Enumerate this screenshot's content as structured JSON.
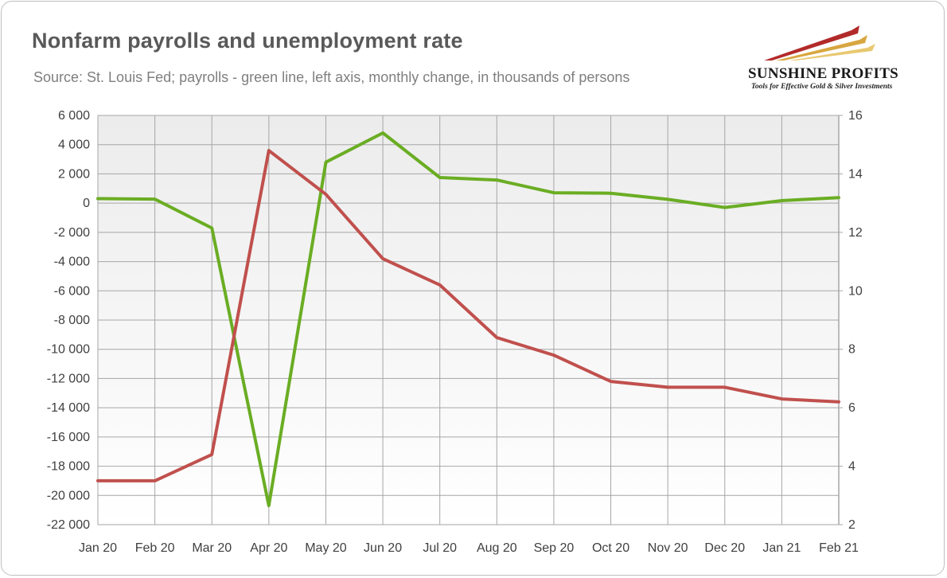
{
  "header": {
    "title": "Nonfarm payrolls and unemployment rate",
    "subtitle": "Source: St. Louis Fed; payrolls - green line, left axis, monthly change, in thousands of persons"
  },
  "logo": {
    "name": "SUNSHINE PROFITS",
    "tagline": "Tools for Effective Gold & Silver Investments"
  },
  "colors": {
    "payrolls": "#6aad23",
    "unemployment": "#c0504d",
    "plot_bg": "#f2f2f2",
    "grid": "#a6a6a6"
  },
  "chart_data": {
    "type": "line",
    "categories": [
      "Jan 20",
      "Feb 20",
      "Mar 20",
      "Apr 20",
      "May 20",
      "Jun 20",
      "Jul 20",
      "Aug 20",
      "Sep 20",
      "Oct 20",
      "Nov 20",
      "Dec 20",
      "Jan 21",
      "Feb 21"
    ],
    "left_axis": {
      "ylim": [
        -22000,
        6000
      ],
      "ticks": [
        "6 000",
        "4 000",
        "2 000",
        "0",
        "-2 000",
        "-4 000",
        "-6 000",
        "-8 000",
        "-10 000",
        "-12 000",
        "-14 000",
        "-16 000",
        "-18 000",
        "-20 000",
        "-22 000"
      ],
      "tick_values": [
        6000,
        4000,
        2000,
        0,
        -2000,
        -4000,
        -6000,
        -8000,
        -10000,
        -12000,
        -14000,
        -16000,
        -18000,
        -20000,
        -22000
      ]
    },
    "right_axis": {
      "ylim": [
        2,
        16
      ],
      "ticks": [
        "16",
        "14",
        "12",
        "10",
        "8",
        "6",
        "4",
        "2"
      ],
      "tick_values": [
        16,
        14,
        12,
        10,
        8,
        6,
        4,
        2
      ]
    },
    "series": [
      {
        "key": "payrolls",
        "axis": "left",
        "values": [
          310,
          275,
          -1700,
          -20700,
          2800,
          4800,
          1750,
          1580,
          710,
          680,
          260,
          -300,
          170,
          380
        ]
      },
      {
        "key": "unemployment",
        "axis": "right",
        "values": [
          3.5,
          3.5,
          4.4,
          14.8,
          13.3,
          11.1,
          10.2,
          8.4,
          7.8,
          6.9,
          6.7,
          6.7,
          6.3,
          6.2
        ]
      }
    ],
    "grid": true
  }
}
